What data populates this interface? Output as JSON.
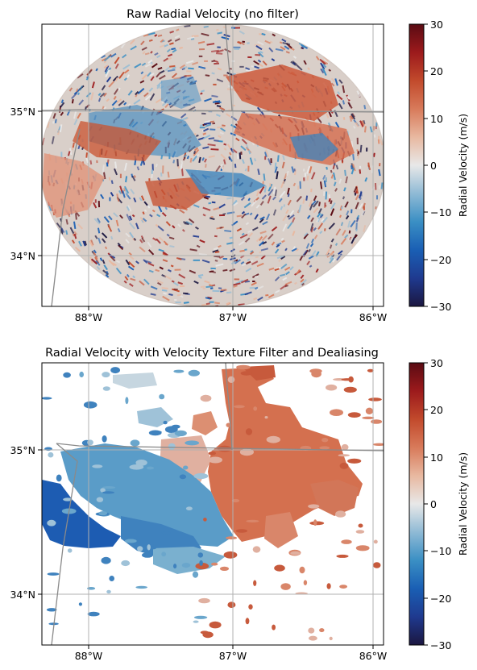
{
  "colors": {
    "cmap": [
      "#1b1740",
      "#1f3a8f",
      "#1a5fb4",
      "#3a8fc4",
      "#8fbad5",
      "#e8e8e8",
      "#e8b8a0",
      "#d87a5a",
      "#c24a2c",
      "#9c1a1c",
      "#5a0b13"
    ],
    "frame": "#000000",
    "gridline": "#b0b0b0",
    "border": "#8a8a8a"
  },
  "chart_data": [
    {
      "type": "heatmap",
      "title": "Raw Radial Velocity (no filter)",
      "x_ticks": [
        "88°W",
        "87°W",
        "86°W"
      ],
      "x_tick_values": [
        -88,
        -87,
        -86
      ],
      "y_ticks": [
        "35°N",
        "34°N"
      ],
      "y_tick_values": [
        35,
        34
      ],
      "xlim": [
        -88.32,
        -85.93
      ],
      "ylim": [
        33.66,
        35.64
      ],
      "grid": true,
      "colorbar": {
        "label": "Radial Velocity (m/s)",
        "ticks": [
          "30",
          "20",
          "10",
          "0",
          "−10",
          "−20",
          "−30"
        ],
        "tick_values": [
          30,
          20,
          10,
          0,
          -10,
          -20,
          -30
        ],
        "range": [
          -30,
          30
        ]
      }
    },
    {
      "type": "heatmap",
      "title": "Radial Velocity with Velocity Texture Filter and Dealiasing",
      "x_ticks": [
        "88°W",
        "87°W",
        "86°W"
      ],
      "x_tick_values": [
        -88,
        -87,
        -86
      ],
      "y_ticks": [
        "35°N",
        "34°N"
      ],
      "y_tick_values": [
        35,
        34
      ],
      "xlim": [
        -88.32,
        -85.93
      ],
      "ylim": [
        33.66,
        35.64
      ],
      "grid": true,
      "colorbar": {
        "label": "Radial Velocity (m/s)",
        "ticks": [
          "30",
          "20",
          "10",
          "0",
          "−10",
          "−20",
          "−30"
        ],
        "tick_values": [
          30,
          20,
          10,
          0,
          -10,
          -20,
          -30
        ],
        "range": [
          -30,
          30
        ]
      }
    }
  ]
}
